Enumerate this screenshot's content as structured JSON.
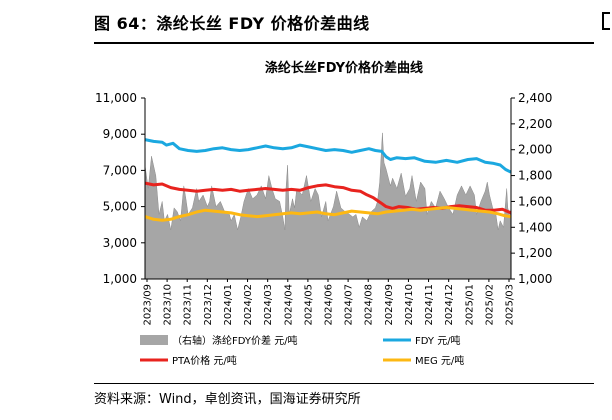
{
  "figure": {
    "title": "图 64：涤纶长丝 FDY 价格价差曲线",
    "source": "资料来源：Wind，卓创资讯，国海证券研究所"
  },
  "chart_data": {
    "type": "line",
    "title": "涤纶长丝FDY价格价差曲线",
    "x_labels": [
      "2023/09",
      "2023/10",
      "2023/11",
      "2023/12",
      "2024/01",
      "2024/02",
      "2024/03",
      "2024/04",
      "2024/05",
      "2024/06",
      "2024/07",
      "2024/08",
      "2024/09",
      "2024/10",
      "2024/11",
      "2024/12",
      "2025/01",
      "2025/02",
      "2025/03"
    ],
    "y_left": {
      "ticks": [
        "1,000",
        "3,000",
        "5,000",
        "7,000",
        "9,000",
        "11,000"
      ],
      "min": 1000,
      "max": 11000
    },
    "y_right": {
      "ticks": [
        "1,000",
        "1,200",
        "1,400",
        "1,600",
        "1,800",
        "2,000",
        "2,200",
        "2,400"
      ],
      "min": 1000,
      "max": 2400
    },
    "grid": false,
    "legend_position": "bottom",
    "series": [
      {
        "name": "（右轴）涤纶FDY价差 元/吨",
        "type": "area",
        "axis": "right",
        "color": "#a6a6a6",
        "points": [
          [
            0,
            1880
          ],
          [
            0.3,
            1700
          ],
          [
            0.6,
            1950
          ],
          [
            1.0,
            1800
          ],
          [
            1.3,
            1500
          ],
          [
            1.6,
            1600
          ],
          [
            1.8,
            1450
          ],
          [
            2.1,
            1500
          ],
          [
            2.4,
            1380
          ],
          [
            2.7,
            1550
          ],
          [
            3.0,
            1520
          ],
          [
            3.3,
            1450
          ],
          [
            3.6,
            1720
          ],
          [
            3.8,
            1620
          ],
          [
            4.0,
            1500
          ],
          [
            4.4,
            1550
          ],
          [
            4.8,
            1700
          ],
          [
            5.0,
            1600
          ],
          [
            5.4,
            1650
          ],
          [
            5.8,
            1560
          ],
          [
            6.0,
            1600
          ],
          [
            6.2,
            1720
          ],
          [
            6.6,
            1560
          ],
          [
            7.0,
            1600
          ],
          [
            7.4,
            1520
          ],
          [
            7.8,
            1510
          ],
          [
            8.0,
            1450
          ],
          [
            8.3,
            1500
          ],
          [
            8.6,
            1380
          ],
          [
            8.9,
            1480
          ],
          [
            9.2,
            1600
          ],
          [
            9.6,
            1700
          ],
          [
            10.0,
            1620
          ],
          [
            10.4,
            1650
          ],
          [
            10.8,
            1720
          ],
          [
            11.2,
            1620
          ],
          [
            11.5,
            1800
          ],
          [
            11.8,
            1700
          ],
          [
            12.1,
            1620
          ],
          [
            12.5,
            1600
          ],
          [
            12.8,
            1480
          ],
          [
            13.0,
            1380
          ],
          [
            13.1,
            1700
          ],
          [
            13.25,
            1880
          ],
          [
            13.4,
            1500
          ],
          [
            13.7,
            1620
          ],
          [
            13.9,
            1550
          ],
          [
            14.1,
            1700
          ],
          [
            14.6,
            1650
          ],
          [
            15.0,
            1800
          ],
          [
            15.4,
            1600
          ],
          [
            15.8,
            1700
          ],
          [
            16.1,
            1650
          ],
          [
            16.4,
            1480
          ],
          [
            16.8,
            1600
          ],
          [
            17.0,
            1450
          ],
          [
            17.5,
            1560
          ],
          [
            17.8,
            1680
          ],
          [
            18.2,
            1550
          ],
          [
            18.6,
            1520
          ],
          [
            19.0,
            1500
          ],
          [
            19.3,
            1480
          ],
          [
            19.6,
            1500
          ],
          [
            19.9,
            1400
          ],
          [
            20.2,
            1480
          ],
          [
            20.6,
            1450
          ],
          [
            21.0,
            1520
          ],
          [
            21.4,
            1550
          ],
          [
            21.6,
            1600
          ],
          [
            21.8,
            1750
          ],
          [
            22.05,
            2130
          ],
          [
            22.2,
            1900
          ],
          [
            22.4,
            1850
          ],
          [
            22.8,
            1720
          ],
          [
            23.0,
            1780
          ],
          [
            23.4,
            1700
          ],
          [
            23.8,
            1820
          ],
          [
            24.2,
            1640
          ],
          [
            24.6,
            1700
          ],
          [
            24.8,
            1800
          ],
          [
            25.2,
            1600
          ],
          [
            25.6,
            1750
          ],
          [
            26.0,
            1700
          ],
          [
            26.2,
            1500
          ],
          [
            26.6,
            1600
          ],
          [
            27.0,
            1550
          ],
          [
            27.4,
            1680
          ],
          [
            27.8,
            1620
          ],
          [
            28.2,
            1550
          ],
          [
            28.6,
            1500
          ],
          [
            29.0,
            1650
          ],
          [
            29.4,
            1720
          ],
          [
            29.8,
            1650
          ],
          [
            30.2,
            1720
          ],
          [
            30.6,
            1650
          ],
          [
            30.8,
            1500
          ],
          [
            31.2,
            1600
          ],
          [
            31.6,
            1680
          ],
          [
            31.8,
            1750
          ],
          [
            32.0,
            1650
          ],
          [
            32.3,
            1550
          ],
          [
            32.6,
            1500
          ],
          [
            32.8,
            1380
          ],
          [
            33.0,
            1450
          ],
          [
            33.3,
            1400
          ],
          [
            33.6,
            1700
          ],
          [
            33.7,
            1550
          ],
          [
            33.9,
            1480
          ],
          [
            34.0,
            1560
          ]
        ]
      },
      {
        "name": "FDY 元/吨",
        "type": "line",
        "axis": "left",
        "color": "#1ba8e0",
        "points": [
          [
            0,
            8700
          ],
          [
            0.8,
            8600
          ],
          [
            1.6,
            8550
          ],
          [
            2.0,
            8400
          ],
          [
            2.6,
            8500
          ],
          [
            3.2,
            8200
          ],
          [
            4.0,
            8100
          ],
          [
            4.8,
            8050
          ],
          [
            5.6,
            8100
          ],
          [
            6.4,
            8200
          ],
          [
            7.2,
            8250
          ],
          [
            8.0,
            8150
          ],
          [
            8.8,
            8100
          ],
          [
            9.6,
            8150
          ],
          [
            10.4,
            8250
          ],
          [
            11.2,
            8350
          ],
          [
            12.0,
            8250
          ],
          [
            12.8,
            8200
          ],
          [
            13.6,
            8250
          ],
          [
            14.4,
            8400
          ],
          [
            15.2,
            8300
          ],
          [
            16.0,
            8200
          ],
          [
            16.8,
            8100
          ],
          [
            17.6,
            8150
          ],
          [
            18.4,
            8100
          ],
          [
            19.2,
            8000
          ],
          [
            20.0,
            8100
          ],
          [
            20.8,
            8200
          ],
          [
            21.4,
            8100
          ],
          [
            22.0,
            8050
          ],
          [
            22.4,
            7750
          ],
          [
            22.8,
            7600
          ],
          [
            23.4,
            7700
          ],
          [
            24.2,
            7650
          ],
          [
            25.0,
            7700
          ],
          [
            26.0,
            7500
          ],
          [
            27.0,
            7450
          ],
          [
            28.0,
            7550
          ],
          [
            29.0,
            7450
          ],
          [
            30.0,
            7600
          ],
          [
            30.8,
            7650
          ],
          [
            31.6,
            7450
          ],
          [
            32.3,
            7400
          ],
          [
            33.0,
            7300
          ],
          [
            33.5,
            7050
          ],
          [
            34.0,
            6900
          ]
        ]
      },
      {
        "name": "PTA价格 元/吨",
        "type": "line",
        "axis": "left",
        "color": "#e8231e",
        "points": [
          [
            0,
            6300
          ],
          [
            0.8,
            6200
          ],
          [
            1.6,
            6250
          ],
          [
            2.4,
            6050
          ],
          [
            3.2,
            5950
          ],
          [
            4.0,
            5900
          ],
          [
            4.8,
            5850
          ],
          [
            5.6,
            5900
          ],
          [
            6.4,
            5950
          ],
          [
            7.2,
            5900
          ],
          [
            8.0,
            5950
          ],
          [
            8.8,
            5850
          ],
          [
            9.6,
            5900
          ],
          [
            10.4,
            5950
          ],
          [
            11.2,
            6000
          ],
          [
            12.0,
            5950
          ],
          [
            12.8,
            5900
          ],
          [
            13.6,
            5950
          ],
          [
            14.4,
            5900
          ],
          [
            15.2,
            6050
          ],
          [
            16.0,
            6150
          ],
          [
            16.8,
            6200
          ],
          [
            17.6,
            6100
          ],
          [
            18.4,
            6050
          ],
          [
            19.2,
            5900
          ],
          [
            20.0,
            5850
          ],
          [
            20.6,
            5650
          ],
          [
            21.2,
            5500
          ],
          [
            21.8,
            5250
          ],
          [
            22.4,
            5000
          ],
          [
            23.0,
            4900
          ],
          [
            23.6,
            5000
          ],
          [
            24.4,
            4950
          ],
          [
            25.2,
            4850
          ],
          [
            26.0,
            4900
          ],
          [
            26.8,
            4950
          ],
          [
            27.6,
            4900
          ],
          [
            28.4,
            5000
          ],
          [
            29.2,
            5050
          ],
          [
            30.0,
            5000
          ],
          [
            30.8,
            4950
          ],
          [
            31.6,
            4800
          ],
          [
            32.4,
            4800
          ],
          [
            33.2,
            4850
          ],
          [
            34.0,
            4650
          ]
        ]
      },
      {
        "name": "MEG 元/吨",
        "type": "line",
        "axis": "left",
        "color": "#fdb813",
        "points": [
          [
            0,
            4450
          ],
          [
            0.8,
            4300
          ],
          [
            1.6,
            4250
          ],
          [
            2.4,
            4300
          ],
          [
            3.2,
            4450
          ],
          [
            4.0,
            4550
          ],
          [
            4.8,
            4700
          ],
          [
            5.6,
            4800
          ],
          [
            6.4,
            4750
          ],
          [
            7.2,
            4700
          ],
          [
            8.0,
            4650
          ],
          [
            8.8,
            4550
          ],
          [
            9.6,
            4500
          ],
          [
            10.4,
            4450
          ],
          [
            11.2,
            4500
          ],
          [
            12.0,
            4550
          ],
          [
            12.8,
            4600
          ],
          [
            13.6,
            4650
          ],
          [
            14.4,
            4600
          ],
          [
            15.2,
            4650
          ],
          [
            16.0,
            4700
          ],
          [
            16.8,
            4600
          ],
          [
            17.6,
            4550
          ],
          [
            18.4,
            4650
          ],
          [
            19.2,
            4750
          ],
          [
            20.0,
            4700
          ],
          [
            20.8,
            4650
          ],
          [
            21.6,
            4600
          ],
          [
            22.4,
            4700
          ],
          [
            23.2,
            4750
          ],
          [
            24.0,
            4800
          ],
          [
            24.8,
            4850
          ],
          [
            25.6,
            4800
          ],
          [
            26.4,
            4850
          ],
          [
            27.2,
            4900
          ],
          [
            28.0,
            4950
          ],
          [
            28.8,
            4900
          ],
          [
            29.6,
            4850
          ],
          [
            30.4,
            4800
          ],
          [
            31.2,
            4750
          ],
          [
            32.0,
            4700
          ],
          [
            32.8,
            4600
          ],
          [
            33.4,
            4500
          ],
          [
            34.0,
            4450
          ]
        ]
      }
    ]
  }
}
